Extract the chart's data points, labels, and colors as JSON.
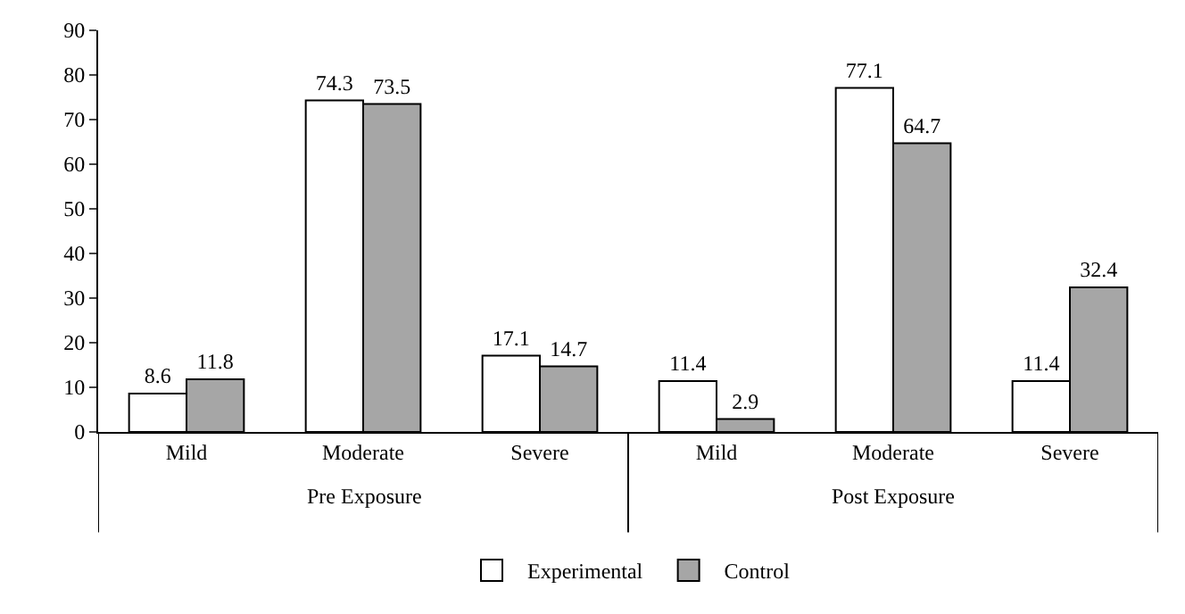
{
  "chart_data": {
    "type": "bar",
    "categories": [
      "Mild",
      "Moderate",
      "Severe",
      "Mild",
      "Moderate",
      "Severe"
    ],
    "series": [
      {
        "name": "Experimental",
        "color": "#ffffff",
        "values": [
          8.6,
          74.3,
          17.1,
          11.4,
          77.1,
          11.4
        ]
      },
      {
        "name": "Control",
        "color": "#a6a6a6",
        "values": [
          11.8,
          73.5,
          14.7,
          2.9,
          64.7,
          32.4
        ]
      }
    ],
    "annotations": [
      "Pre Exposure",
      "Post Exposure"
    ],
    "ylim": [
      0,
      90
    ],
    "yticks": [
      0,
      10,
      20,
      30,
      40,
      50,
      60,
      70,
      80,
      90
    ],
    "legend": "bottom",
    "data_labels": true
  }
}
